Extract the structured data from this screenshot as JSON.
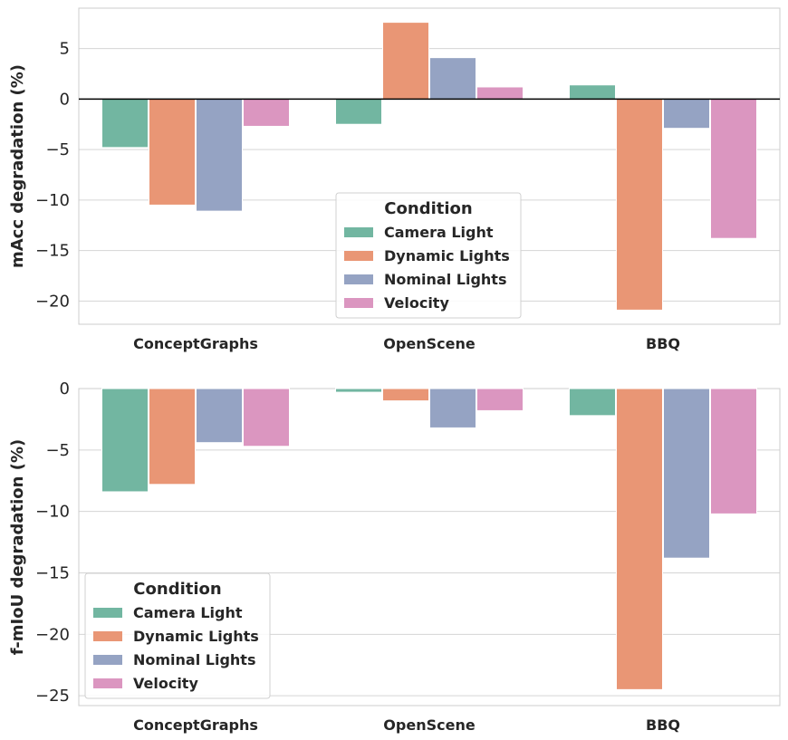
{
  "chart_data": [
    {
      "type": "bar",
      "categories": [
        "ConceptGraphs",
        "OpenScene",
        "BBQ"
      ],
      "ylabel": "mAcc degradation (%)",
      "ylim": [
        -22.3,
        9
      ],
      "yticks": [
        5,
        0,
        -5,
        -10,
        -15,
        -20
      ],
      "zero_line": true,
      "grid": true,
      "legend": {
        "title": "Condition",
        "placement": "lower-center"
      },
      "series": [
        {
          "name": "Camera Light",
          "color": "#72b6a1",
          "values": [
            -4.8,
            -2.5,
            1.4
          ]
        },
        {
          "name": "Dynamic Lights",
          "color": "#e99675",
          "values": [
            -10.5,
            7.6,
            -20.9
          ]
        },
        {
          "name": "Nominal Lights",
          "color": "#95a3c3",
          "values": [
            -11.1,
            4.1,
            -2.9
          ]
        },
        {
          "name": "Velocity",
          "color": "#db96c0",
          "values": [
            -2.7,
            1.2,
            -13.8
          ]
        }
      ]
    },
    {
      "type": "bar",
      "categories": [
        "ConceptGraphs",
        "OpenScene",
        "BBQ"
      ],
      "ylabel": "f-mIoU degradation (%)",
      "ylim": [
        -25.8,
        0
      ],
      "yticks": [
        0,
        -5,
        -10,
        -15,
        -20,
        -25
      ],
      "zero_line": false,
      "grid": true,
      "legend": {
        "title": "Condition",
        "placement": "lower-left"
      },
      "series": [
        {
          "name": "Camera Light",
          "color": "#72b6a1",
          "values": [
            -8.4,
            -0.3,
            -2.2
          ]
        },
        {
          "name": "Dynamic Lights",
          "color": "#e99675",
          "values": [
            -7.8,
            -1.0,
            -24.5
          ]
        },
        {
          "name": "Nominal Lights",
          "color": "#95a3c3",
          "values": [
            -4.4,
            -3.2,
            -13.8
          ]
        },
        {
          "name": "Velocity",
          "color": "#db96c0",
          "values": [
            -4.7,
            -1.8,
            -10.2
          ]
        }
      ]
    }
  ]
}
